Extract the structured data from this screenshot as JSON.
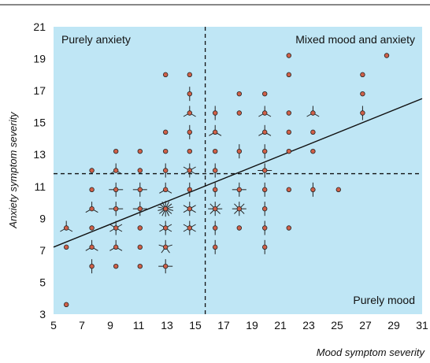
{
  "chart_data": {
    "type": "scatter",
    "xlabel": "Mood symptom severity",
    "ylabel": "Anxiety symptom severity",
    "xlim": [
      5,
      31
    ],
    "ylim": [
      3,
      21
    ],
    "xticks": [
      "5",
      "7",
      "9",
      "11",
      "13",
      "15",
      "17",
      "19",
      "21",
      "23",
      "25",
      "27",
      "29",
      "31"
    ],
    "yticks": [
      "3",
      "5",
      "7",
      "9",
      "11",
      "13",
      "15",
      "17",
      "19",
      "21"
    ],
    "x_threshold": 15.7,
    "y_threshold": 11.8,
    "quadrant_labels": {
      "top_left": "Purely anxiety",
      "top_right": "Mixed mood and anxiety",
      "bottom_right": "Purely mood"
    },
    "regression_line": {
      "x": [
        5,
        31
      ],
      "y": [
        7.2,
        16.5
      ]
    },
    "points": [
      {
        "x": 5.9,
        "y": 3.6,
        "n": 1
      },
      {
        "x": 5.9,
        "y": 7.2,
        "n": 1
      },
      {
        "x": 5.9,
        "y": 8.4,
        "n": 3
      },
      {
        "x": 7.7,
        "y": 6.0,
        "n": 2
      },
      {
        "x": 7.7,
        "y": 7.2,
        "n": 3
      },
      {
        "x": 7.7,
        "y": 8.4,
        "n": 1
      },
      {
        "x": 7.7,
        "y": 9.6,
        "n": 3
      },
      {
        "x": 7.7,
        "y": 10.8,
        "n": 1
      },
      {
        "x": 7.7,
        "y": 12.0,
        "n": 1
      },
      {
        "x": 9.4,
        "y": 6.0,
        "n": 1
      },
      {
        "x": 9.4,
        "y": 7.2,
        "n": 3
      },
      {
        "x": 9.4,
        "y": 8.4,
        "n": 6
      },
      {
        "x": 9.4,
        "y": 9.6,
        "n": 4
      },
      {
        "x": 9.4,
        "y": 10.8,
        "n": 4
      },
      {
        "x": 9.4,
        "y": 12.0,
        "n": 3
      },
      {
        "x": 9.4,
        "y": 13.2,
        "n": 1
      },
      {
        "x": 11.1,
        "y": 6.0,
        "n": 1
      },
      {
        "x": 11.1,
        "y": 7.2,
        "n": 1
      },
      {
        "x": 11.1,
        "y": 8.4,
        "n": 1
      },
      {
        "x": 11.1,
        "y": 9.6,
        "n": 4
      },
      {
        "x": 11.1,
        "y": 10.8,
        "n": 4
      },
      {
        "x": 11.1,
        "y": 12.0,
        "n": 1
      },
      {
        "x": 11.1,
        "y": 13.2,
        "n": 1
      },
      {
        "x": 12.9,
        "y": 6.0,
        "n": 4
      },
      {
        "x": 12.9,
        "y": 7.2,
        "n": 5
      },
      {
        "x": 12.9,
        "y": 8.4,
        "n": 6
      },
      {
        "x": 12.9,
        "y": 9.6,
        "n": 14
      },
      {
        "x": 12.9,
        "y": 10.8,
        "n": 3
      },
      {
        "x": 12.9,
        "y": 12.0,
        "n": 2
      },
      {
        "x": 12.9,
        "y": 13.2,
        "n": 1
      },
      {
        "x": 12.9,
        "y": 14.4,
        "n": 1
      },
      {
        "x": 12.9,
        "y": 18.0,
        "n": 1
      },
      {
        "x": 14.6,
        "y": 8.4,
        "n": 6
      },
      {
        "x": 14.6,
        "y": 9.6,
        "n": 6
      },
      {
        "x": 14.6,
        "y": 10.8,
        "n": 2
      },
      {
        "x": 14.6,
        "y": 12.0,
        "n": 6
      },
      {
        "x": 14.6,
        "y": 13.2,
        "n": 1
      },
      {
        "x": 14.6,
        "y": 14.4,
        "n": 2
      },
      {
        "x": 14.6,
        "y": 15.6,
        "n": 3
      },
      {
        "x": 14.6,
        "y": 16.8,
        "n": 2
      },
      {
        "x": 14.6,
        "y": 18.0,
        "n": 1
      },
      {
        "x": 16.4,
        "y": 7.2,
        "n": 2
      },
      {
        "x": 16.4,
        "y": 8.4,
        "n": 2
      },
      {
        "x": 16.4,
        "y": 9.6,
        "n": 8
      },
      {
        "x": 16.4,
        "y": 10.8,
        "n": 2
      },
      {
        "x": 16.4,
        "y": 12.0,
        "n": 2
      },
      {
        "x": 16.4,
        "y": 13.2,
        "n": 1
      },
      {
        "x": 16.4,
        "y": 14.4,
        "n": 3
      },
      {
        "x": 16.4,
        "y": 15.6,
        "n": 2
      },
      {
        "x": 18.1,
        "y": 8.4,
        "n": 1
      },
      {
        "x": 18.1,
        "y": 9.6,
        "n": 8
      },
      {
        "x": 18.1,
        "y": 10.8,
        "n": 4
      },
      {
        "x": 18.1,
        "y": 13.2,
        "n": 2
      },
      {
        "x": 18.1,
        "y": 15.6,
        "n": 1
      },
      {
        "x": 18.1,
        "y": 16.8,
        "n": 1
      },
      {
        "x": 19.9,
        "y": 7.2,
        "n": 2
      },
      {
        "x": 19.9,
        "y": 8.4,
        "n": 2
      },
      {
        "x": 19.9,
        "y": 9.6,
        "n": 2
      },
      {
        "x": 19.9,
        "y": 10.8,
        "n": 2
      },
      {
        "x": 19.9,
        "y": 12.0,
        "n": 4
      },
      {
        "x": 19.9,
        "y": 13.2,
        "n": 2
      },
      {
        "x": 19.9,
        "y": 14.4,
        "n": 3
      },
      {
        "x": 19.9,
        "y": 15.6,
        "n": 3
      },
      {
        "x": 19.9,
        "y": 16.8,
        "n": 1
      },
      {
        "x": 21.6,
        "y": 8.4,
        "n": 1
      },
      {
        "x": 21.6,
        "y": 10.8,
        "n": 1
      },
      {
        "x": 21.6,
        "y": 13.2,
        "n": 1
      },
      {
        "x": 21.6,
        "y": 14.4,
        "n": 1
      },
      {
        "x": 21.6,
        "y": 15.6,
        "n": 1
      },
      {
        "x": 21.6,
        "y": 18.0,
        "n": 1
      },
      {
        "x": 21.6,
        "y": 19.2,
        "n": 1
      },
      {
        "x": 23.3,
        "y": 10.8,
        "n": 2
      },
      {
        "x": 23.3,
        "y": 13.2,
        "n": 1
      },
      {
        "x": 23.3,
        "y": 14.4,
        "n": 1
      },
      {
        "x": 23.3,
        "y": 15.6,
        "n": 3
      },
      {
        "x": 25.1,
        "y": 10.8,
        "n": 1
      },
      {
        "x": 26.8,
        "y": 15.6,
        "n": 2
      },
      {
        "x": 26.8,
        "y": 16.8,
        "n": 1
      },
      {
        "x": 26.8,
        "y": 18.0,
        "n": 1
      },
      {
        "x": 28.5,
        "y": 19.2,
        "n": 1
      }
    ]
  },
  "colors": {
    "background": "#bfe6f5",
    "point_fill": "#d06048",
    "point_stroke": "#222222",
    "line": "#111111"
  }
}
